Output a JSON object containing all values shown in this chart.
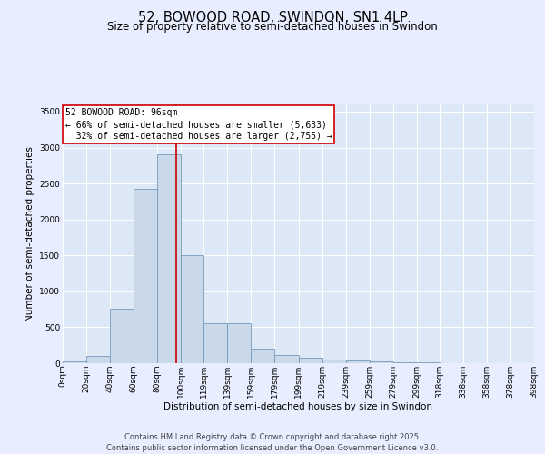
{
  "title": "52, BOWOOD ROAD, SWINDON, SN1 4LP",
  "subtitle": "Size of property relative to semi-detached houses in Swindon",
  "xlabel": "Distribution of semi-detached houses by size in Swindon",
  "ylabel": "Number of semi-detached properties",
  "property_size": 96,
  "property_label": "52 BOWOOD ROAD: 96sqm",
  "pct_smaller": 66,
  "n_smaller": 5633,
  "pct_larger": 32,
  "n_larger": 2755,
  "bar_color": "#c9d9ea",
  "bar_edge_color": "#7799bb",
  "vline_color": "#cc0000",
  "annotation_box_color": "#cc0000",
  "fig_bg_color": "#e8eeff",
  "plot_bg_color": "#dce8f5",
  "grid_color": "#ffffff",
  "bins": [
    0,
    20,
    40,
    60,
    80,
    100,
    119,
    139,
    159,
    179,
    199,
    219,
    239,
    259,
    279,
    299,
    318,
    338,
    358,
    378,
    398
  ],
  "counts": [
    25,
    95,
    760,
    2430,
    2900,
    1500,
    560,
    560,
    200,
    120,
    80,
    55,
    40,
    25,
    15,
    8,
    5,
    3,
    2,
    2
  ],
  "ylim": [
    0,
    3600
  ],
  "yticks": [
    0,
    500,
    1000,
    1500,
    2000,
    2500,
    3000,
    3500
  ],
  "footer_line1": "Contains HM Land Registry data © Crown copyright and database right 2025.",
  "footer_line2": "Contains public sector information licensed under the Open Government Licence v3.0.",
  "title_fontsize": 10.5,
  "subtitle_fontsize": 8.5,
  "axis_label_fontsize": 7.5,
  "tick_fontsize": 6.5,
  "annotation_fontsize": 7,
  "footer_fontsize": 6
}
